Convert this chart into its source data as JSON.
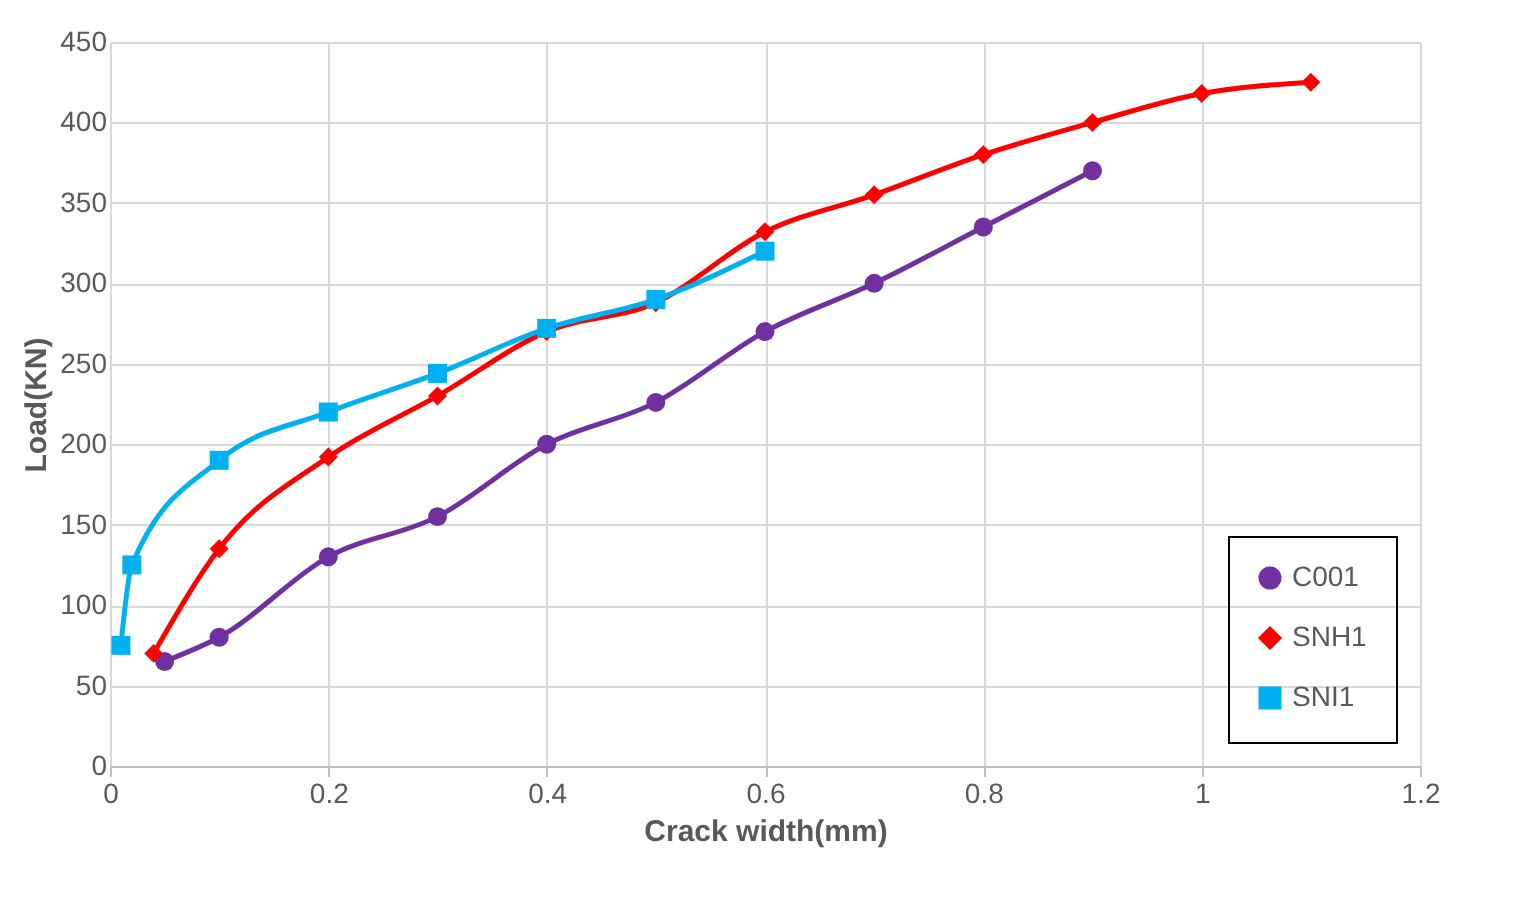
{
  "chart_data": {
    "type": "line",
    "xlabel": "Crack width(mm)",
    "ylabel": "Load(KN)",
    "xlim": [
      0,
      1.2
    ],
    "xticks": [
      0,
      0.2,
      0.4,
      0.6,
      0.8,
      1,
      1.2
    ],
    "ylim": [
      0,
      450
    ],
    "yticks": [
      0,
      50,
      100,
      150,
      200,
      250,
      300,
      350,
      400,
      450
    ],
    "grid": true,
    "legend": "bottom right",
    "series": [
      {
        "name": "C001",
        "color": "#7030a0",
        "marker": "circle",
        "x": [
          0.05,
          0.1,
          0.2,
          0.3,
          0.4,
          0.5,
          0.6,
          0.7,
          0.8,
          0.9
        ],
        "values": [
          65,
          80,
          130,
          155,
          200,
          226,
          270,
          300,
          335,
          370
        ]
      },
      {
        "name": "SNH1",
        "color": "#ff0000",
        "marker": "diamond",
        "x": [
          0.04,
          0.1,
          0.2,
          0.3,
          0.4,
          0.5,
          0.6,
          0.7,
          0.8,
          0.9,
          1.0,
          1.1
        ],
        "values": [
          70,
          135,
          192,
          230,
          270,
          288,
          332,
          355,
          380,
          400,
          418,
          425
        ]
      },
      {
        "name": "SNI1",
        "color": "#00b0f0",
        "marker": "square",
        "x": [
          0.01,
          0.02,
          0.1,
          0.2,
          0.3,
          0.4,
          0.5,
          0.6
        ],
        "values": [
          75,
          125,
          190,
          220,
          244,
          272,
          290,
          320
        ]
      }
    ]
  }
}
